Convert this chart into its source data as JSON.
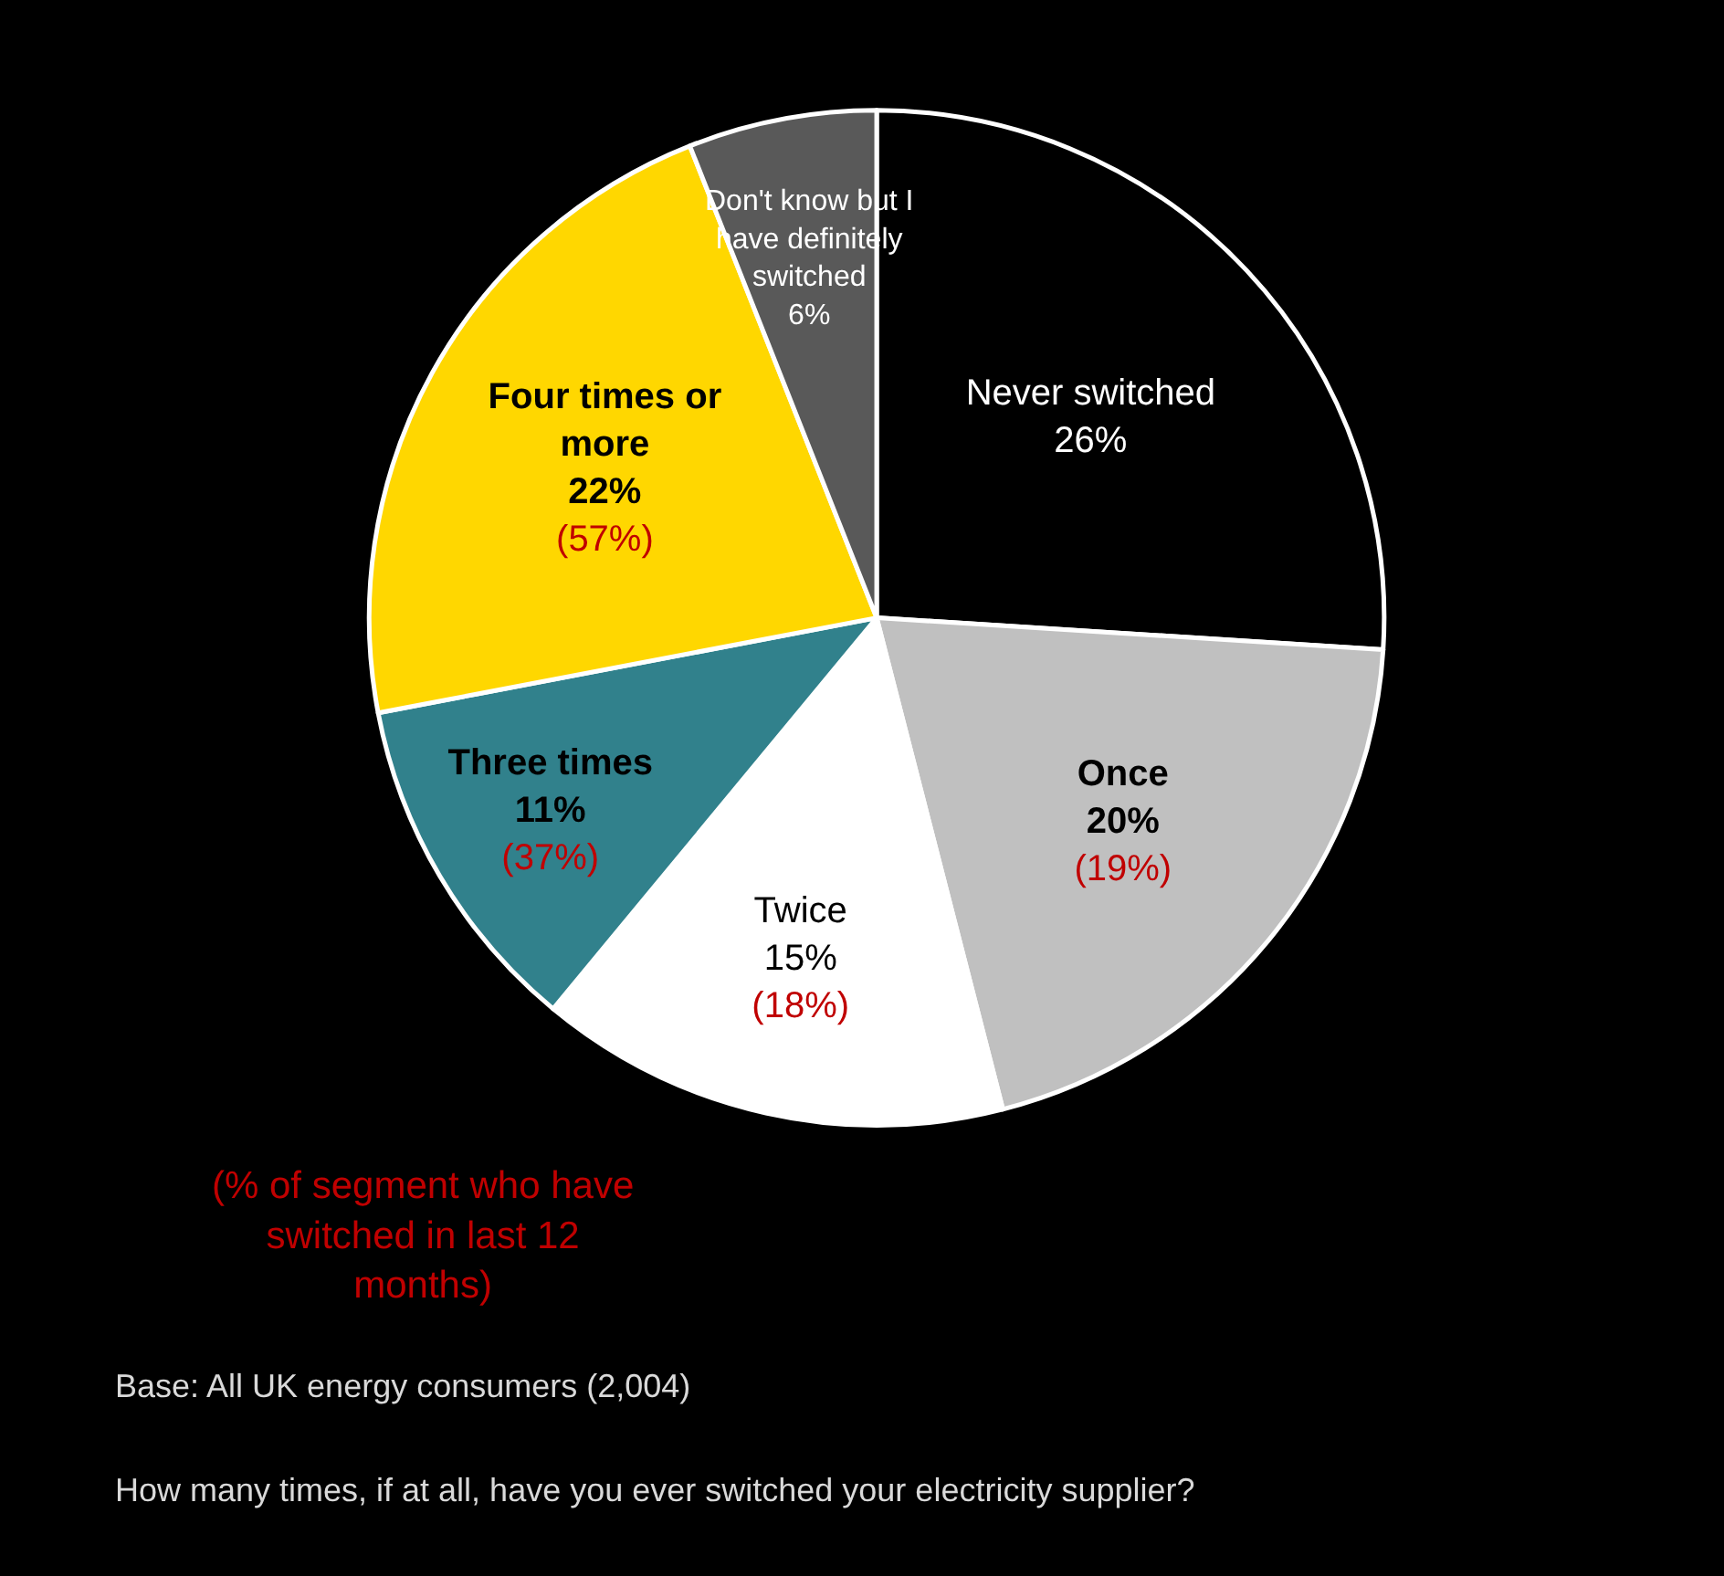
{
  "chart_data": {
    "type": "pie",
    "categories": [
      "Never switched",
      "Once",
      "Twice",
      "Three times",
      "Four times or more",
      "Don't know but I have definitely switched"
    ],
    "values": [
      26,
      20,
      15,
      11,
      22,
      6
    ],
    "colors": [
      "#000000",
      "#c0c0c0",
      "#ffffff",
      "#31818c",
      "#ffd700",
      "#595959"
    ],
    "value_labels": [
      "26%",
      "20%",
      "15%",
      "11%",
      "22%",
      "6%"
    ],
    "legend": false,
    "annotations": [
      {
        "text": "(19%)",
        "x": "Once"
      },
      {
        "text": "(18%)",
        "x": "Twice"
      },
      {
        "text": "(37%)",
        "x": "Three times"
      },
      {
        "text": "(57%)",
        "x": "Four times or more"
      },
      "(% of segment who have switched in last 12 months)",
      "Base: All UK energy consumers (2,004)",
      "How many times, if at all, have you ever switched your electricity supplier?"
    ]
  }
}
